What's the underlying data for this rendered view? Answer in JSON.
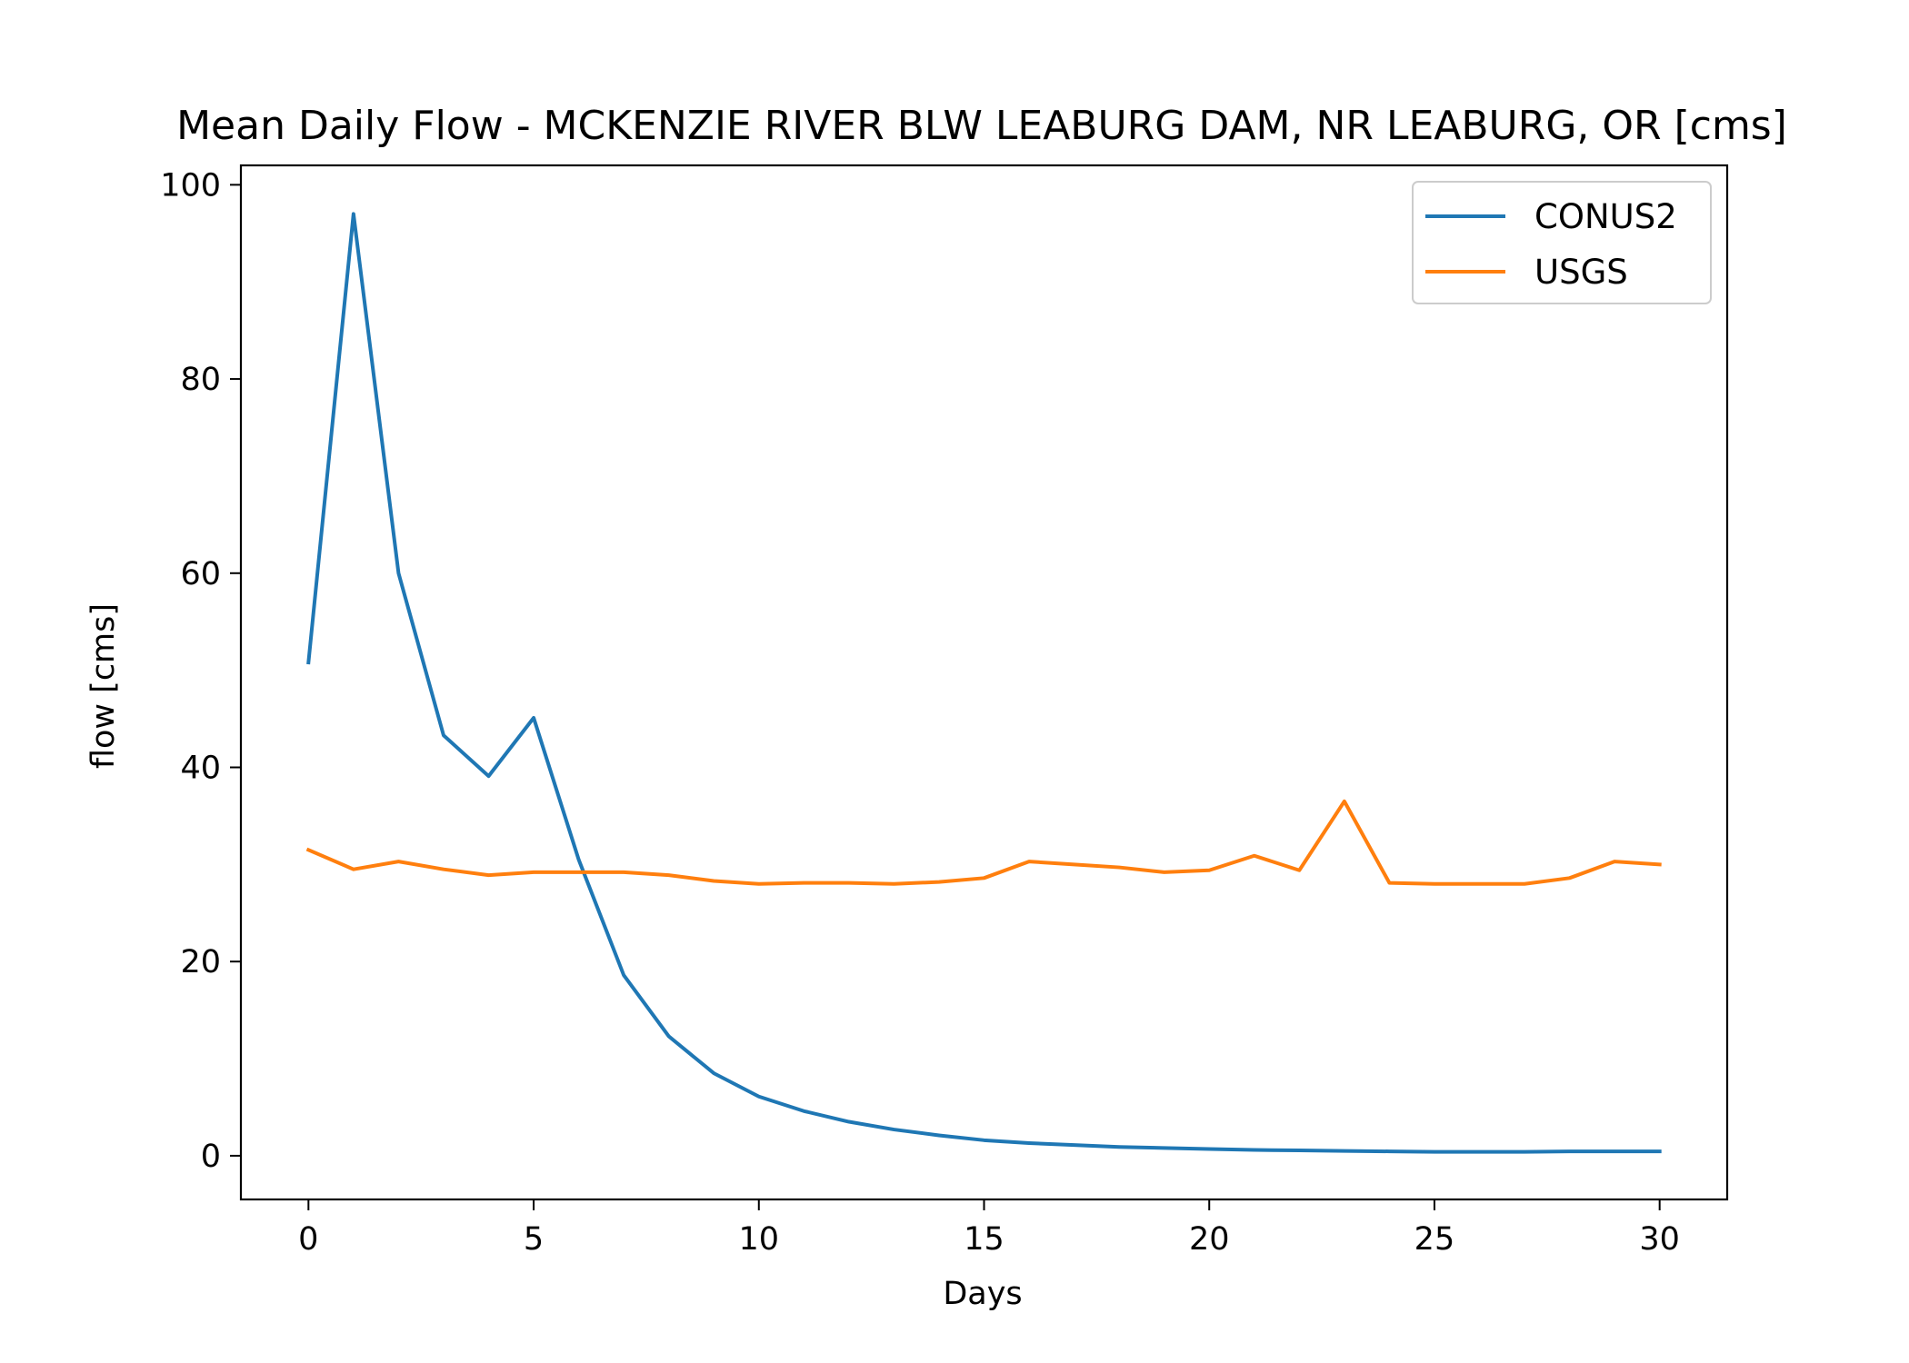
{
  "chart_data": {
    "type": "line",
    "title": "Mean Daily Flow - MCKENZIE RIVER BLW LEABURG DAM, NR LEABURG, OR [cms]",
    "xlabel": "Days",
    "ylabel": "flow [cms]",
    "xlim": [
      -1.5,
      31.5
    ],
    "ylim": [
      -4.5,
      102
    ],
    "xticks": [
      0,
      5,
      10,
      15,
      20,
      25,
      30
    ],
    "yticks": [
      0,
      20,
      40,
      60,
      80,
      100
    ],
    "grid": false,
    "legend_position": "top-right",
    "x": [
      0,
      1,
      2,
      3,
      4,
      5,
      6,
      7,
      8,
      9,
      10,
      11,
      12,
      13,
      14,
      15,
      16,
      17,
      18,
      19,
      20,
      21,
      22,
      23,
      24,
      25,
      26,
      27,
      28,
      29,
      30
    ],
    "series": [
      {
        "name": "CONUS2",
        "color": "#1f77b4",
        "values": [
          50.8,
          97.0,
          60.0,
          43.3,
          39.1,
          45.1,
          30.5,
          18.6,
          12.3,
          8.5,
          6.1,
          4.6,
          3.5,
          2.7,
          2.1,
          1.6,
          1.3,
          1.1,
          0.9,
          0.8,
          0.7,
          0.6,
          0.55,
          0.5,
          0.45,
          0.4,
          0.4,
          0.4,
          0.45,
          0.45,
          0.45
        ]
      },
      {
        "name": "USGS",
        "color": "#ff7f0e",
        "values": [
          31.5,
          29.5,
          30.3,
          29.5,
          28.9,
          29.2,
          29.2,
          29.2,
          28.9,
          28.3,
          28.0,
          28.1,
          28.1,
          28.0,
          28.2,
          28.6,
          30.3,
          30.0,
          29.7,
          29.2,
          29.4,
          30.9,
          29.4,
          36.5,
          28.1,
          28.0,
          28.0,
          28.0,
          28.6,
          30.3,
          30.0
        ]
      }
    ]
  }
}
